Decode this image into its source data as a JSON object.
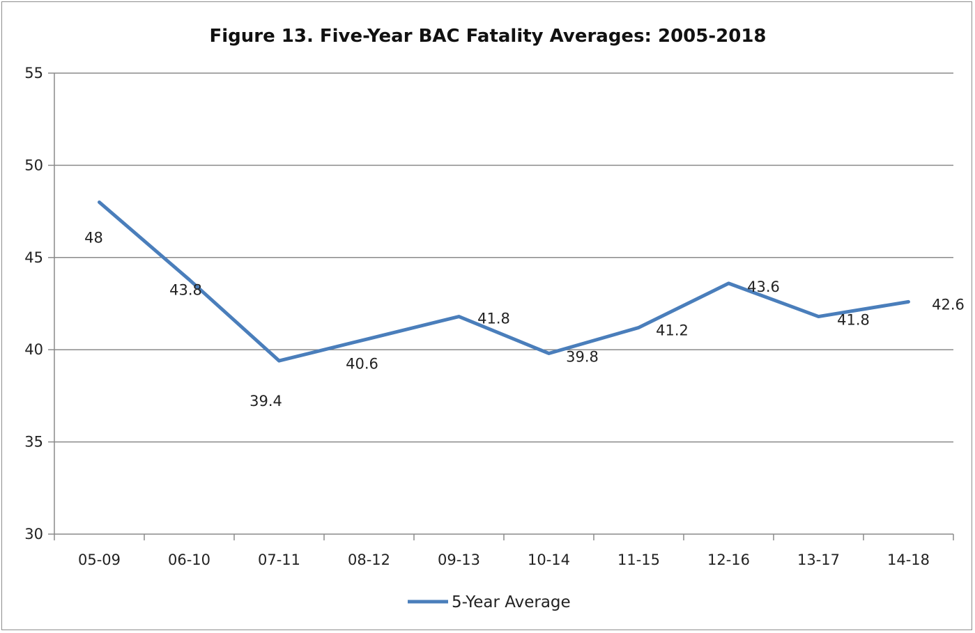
{
  "chart_data": {
    "type": "line",
    "title": "Figure 13. Five-Year BAC Fatality Averages: 2005-2018",
    "categories": [
      "05-09",
      "06-10",
      "07-11",
      "08-12",
      "09-13",
      "10-14",
      "11-15",
      "12-16",
      "13-17",
      "14-18"
    ],
    "series": [
      {
        "name": "5-Year Average",
        "values": [
          48,
          43.8,
          39.4,
          40.6,
          41.8,
          39.8,
          41.2,
          43.6,
          41.8,
          42.6
        ],
        "labels": [
          "48",
          "43.8",
          "39.4",
          "40.6",
          "41.8",
          "39.8",
          "41.2",
          "43.6",
          "41.8",
          "42.6"
        ],
        "color": "#4a7ebb"
      }
    ],
    "ylim": [
      30,
      55
    ],
    "yticks": [
      "30",
      "35",
      "40",
      "45",
      "50",
      "55"
    ],
    "grid": true,
    "legend": "bottom"
  }
}
